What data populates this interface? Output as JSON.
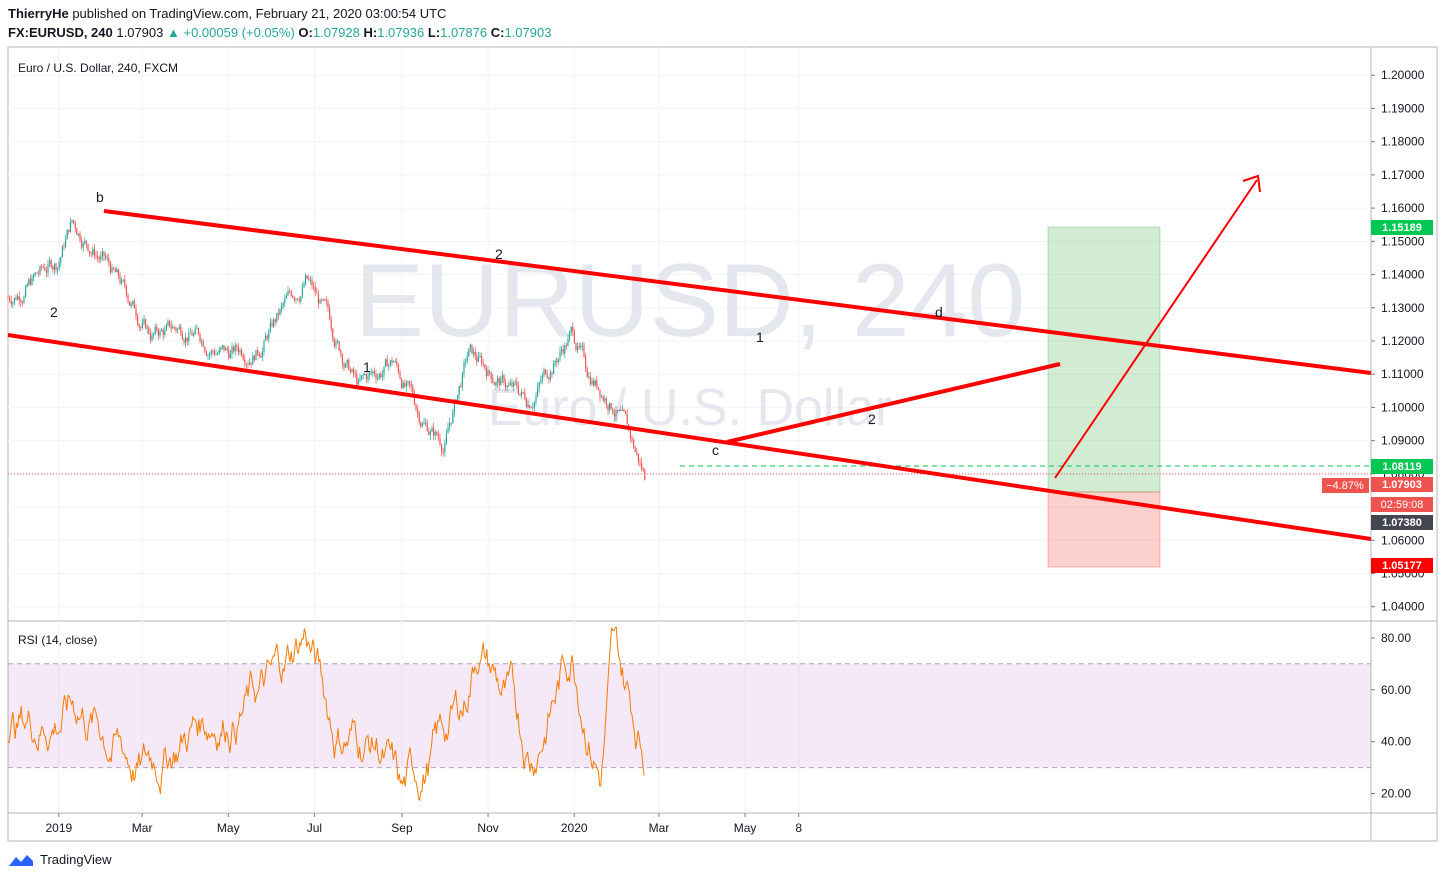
{
  "header": {
    "author": "ThierryHe",
    "published_text": "published on TradingView.com, February 21, 2020 03:00:54 UTC",
    "symbol": "FX:EURUSD, 240",
    "last": "1.07903",
    "change": "▲ +0.00059 (+0.05%)",
    "o_label": "O:",
    "o_value": "1.07928",
    "h_label": "H:",
    "h_value": "1.07936",
    "l_label": "L:",
    "l_value": "1.07876",
    "c_label": "C:",
    "c_value": "1.07903"
  },
  "footer": {
    "brand": "TradingView",
    "logo_icon": "tradingview-logo-icon"
  },
  "colors": {
    "up": "#26a69a",
    "down": "#ef5350",
    "trend": "#ff0000",
    "rsi_line": "#f57c00",
    "rsi_band": "#9c27b0",
    "profit": "#4caf50",
    "loss": "#f44336"
  },
  "chart_data": [
    {
      "type": "candlestick",
      "title": "Euro / U.S. Dollar, 240, FXCM",
      "watermark_symbol": "EURUSD, 240",
      "watermark_name": "Euro / U.S. Dollar",
      "x_ticks": [
        "2019",
        "Mar",
        "May",
        "Jul",
        "Sep",
        "Nov",
        "2020",
        "Mar",
        "May",
        "8"
      ],
      "y_ticks": [
        "1.20000",
        "1.19000",
        "1.18000",
        "1.17000",
        "1.16000",
        "1.15000",
        "1.14000",
        "1.13000",
        "1.12000",
        "1.11000",
        "1.10000",
        "1.09000",
        "1.08000",
        "1.07000",
        "1.06000",
        "1.05000",
        "1.04000"
      ],
      "ylim": [
        1.0357,
        1.2085
      ],
      "grid": true,
      "series": [
        {
          "x": [
            "2018-11-26",
            "2018-12-31",
            "2019-01-10",
            "2019-02-01",
            "2019-03-07",
            "2019-04-01",
            "2019-05-01",
            "2019-05-23",
            "2019-06-25",
            "2019-07-15",
            "2019-08-01",
            "2019-08-26",
            "2019-09-13",
            "2019-10-01",
            "2019-10-18",
            "2019-11-10",
            "2019-11-29",
            "2019-12-31",
            "2020-01-10",
            "2020-01-30",
            "2020-02-20"
          ],
          "close": [
            1.133,
            1.144,
            1.156,
            1.145,
            1.122,
            1.124,
            1.116,
            1.119,
            1.139,
            1.122,
            1.106,
            1.114,
            1.098,
            1.089,
            1.116,
            1.108,
            1.102,
            1.123,
            1.111,
            1.101,
            1.079
          ]
        }
      ],
      "current_price": "1.07903",
      "current_change": "−4.87%",
      "countdown": "02:59:08",
      "levels": {
        "take_profit": "1.15189",
        "entry": "1.08119",
        "stop": "1.05177",
        "other": "1.07380"
      },
      "wave_labels": [
        "b",
        "2",
        "1",
        "2",
        "c",
        "1",
        "2",
        "d"
      ]
    },
    {
      "type": "line",
      "title": "RSI (14, close)",
      "y_ticks": [
        "80.00",
        "60.00",
        "40.00",
        "20.00"
      ],
      "ylim": [
        12.5,
        86.5
      ],
      "bands": [
        70,
        30
      ],
      "x": [
        "2018-11-26",
        "2019-01-15",
        "2019-03-01",
        "2019-04-15",
        "2019-06-01",
        "2019-06-25",
        "2019-07-15",
        "2019-08-15",
        "2019-09-01",
        "2019-10-15",
        "2019-10-25",
        "2019-12-01",
        "2019-12-31",
        "2020-01-20",
        "2020-01-28",
        "2020-02-20"
      ],
      "values": [
        45,
        55,
        30,
        50,
        60,
        83,
        45,
        40,
        16,
        55,
        80,
        35,
        77,
        30,
        73,
        38
      ]
    }
  ]
}
